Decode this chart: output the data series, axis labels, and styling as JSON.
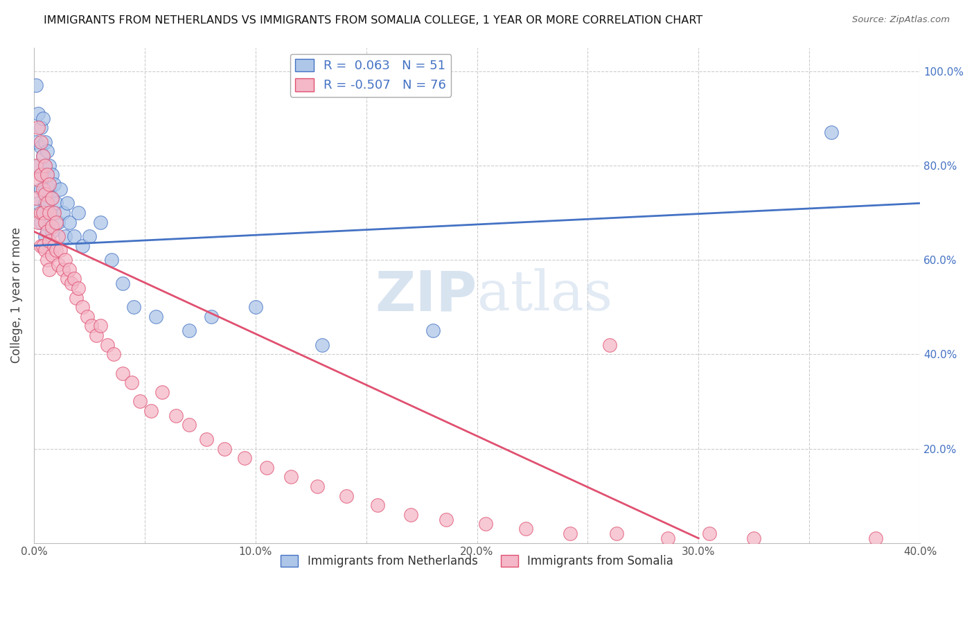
{
  "title": "IMMIGRANTS FROM NETHERLANDS VS IMMIGRANTS FROM SOMALIA COLLEGE, 1 YEAR OR MORE CORRELATION CHART",
  "source": "Source: ZipAtlas.com",
  "ylabel": "College, 1 year or more",
  "xlim": [
    0.0,
    0.4
  ],
  "ylim": [
    0.0,
    1.05
  ],
  "xticks": [
    0.0,
    0.05,
    0.1,
    0.15,
    0.2,
    0.25,
    0.3,
    0.35,
    0.4
  ],
  "xticklabels": [
    "0.0%",
    "",
    "10.0%",
    "",
    "20.0%",
    "",
    "30.0%",
    "",
    "40.0%"
  ],
  "yticks": [
    0.0,
    0.2,
    0.4,
    0.6,
    0.8,
    1.0
  ],
  "yticklabels": [
    "",
    "20.0%",
    "40.0%",
    "60.0%",
    "80.0%",
    "100.0%"
  ],
  "netherlands_color": "#aec6e8",
  "somalia_color": "#f4b8c8",
  "netherlands_line_color": "#4472c4",
  "somalia_line_color": "#e05070",
  "netherlands_R": 0.063,
  "netherlands_N": 51,
  "somalia_R": -0.507,
  "somalia_N": 76,
  "legend_label_netherlands": "Immigrants from Netherlands",
  "legend_label_somalia": "Immigrants from Somalia",
  "watermark_zip": "ZIP",
  "watermark_atlas": "atlas",
  "background_color": "#ffffff",
  "grid_color": "#cccccc",
  "nl_trend_x": [
    0.0,
    0.4
  ],
  "nl_trend_y": [
    0.63,
    0.72
  ],
  "som_trend_x": [
    0.0,
    0.3
  ],
  "som_trend_y": [
    0.66,
    0.01
  ],
  "netherlands_x": [
    0.001,
    0.001,
    0.002,
    0.002,
    0.002,
    0.003,
    0.003,
    0.003,
    0.003,
    0.004,
    0.004,
    0.004,
    0.004,
    0.005,
    0.005,
    0.005,
    0.005,
    0.005,
    0.006,
    0.006,
    0.006,
    0.007,
    0.007,
    0.007,
    0.008,
    0.008,
    0.008,
    0.009,
    0.009,
    0.01,
    0.011,
    0.012,
    0.013,
    0.014,
    0.015,
    0.016,
    0.018,
    0.02,
    0.022,
    0.025,
    0.03,
    0.035,
    0.04,
    0.045,
    0.055,
    0.07,
    0.08,
    0.1,
    0.13,
    0.18,
    0.36
  ],
  "netherlands_y": [
    0.97,
    0.85,
    0.91,
    0.8,
    0.72,
    0.88,
    0.84,
    0.75,
    0.68,
    0.9,
    0.82,
    0.78,
    0.7,
    0.85,
    0.8,
    0.75,
    0.72,
    0.65,
    0.83,
    0.78,
    0.7,
    0.8,
    0.75,
    0.68,
    0.78,
    0.73,
    0.66,
    0.76,
    0.7,
    0.72,
    0.68,
    0.75,
    0.7,
    0.65,
    0.72,
    0.68,
    0.65,
    0.7,
    0.63,
    0.65,
    0.68,
    0.6,
    0.55,
    0.5,
    0.48,
    0.45,
    0.48,
    0.5,
    0.42,
    0.45,
    0.87
  ],
  "somalia_x": [
    0.001,
    0.001,
    0.002,
    0.002,
    0.002,
    0.003,
    0.003,
    0.003,
    0.003,
    0.004,
    0.004,
    0.004,
    0.004,
    0.005,
    0.005,
    0.005,
    0.005,
    0.006,
    0.006,
    0.006,
    0.006,
    0.007,
    0.007,
    0.007,
    0.007,
    0.008,
    0.008,
    0.008,
    0.009,
    0.009,
    0.01,
    0.01,
    0.011,
    0.011,
    0.012,
    0.013,
    0.014,
    0.015,
    0.016,
    0.017,
    0.018,
    0.019,
    0.02,
    0.022,
    0.024,
    0.026,
    0.028,
    0.03,
    0.033,
    0.036,
    0.04,
    0.044,
    0.048,
    0.053,
    0.058,
    0.064,
    0.07,
    0.078,
    0.086,
    0.095,
    0.105,
    0.116,
    0.128,
    0.141,
    0.155,
    0.17,
    0.186,
    0.204,
    0.222,
    0.242,
    0.263,
    0.286,
    0.305,
    0.325,
    0.38,
    0.26
  ],
  "somalia_y": [
    0.8,
    0.73,
    0.88,
    0.77,
    0.68,
    0.85,
    0.78,
    0.7,
    0.63,
    0.82,
    0.75,
    0.7,
    0.63,
    0.8,
    0.74,
    0.68,
    0.62,
    0.78,
    0.72,
    0.66,
    0.6,
    0.76,
    0.7,
    0.64,
    0.58,
    0.73,
    0.67,
    0.61,
    0.7,
    0.63,
    0.68,
    0.62,
    0.65,
    0.59,
    0.62,
    0.58,
    0.6,
    0.56,
    0.58,
    0.55,
    0.56,
    0.52,
    0.54,
    0.5,
    0.48,
    0.46,
    0.44,
    0.46,
    0.42,
    0.4,
    0.36,
    0.34,
    0.3,
    0.28,
    0.32,
    0.27,
    0.25,
    0.22,
    0.2,
    0.18,
    0.16,
    0.14,
    0.12,
    0.1,
    0.08,
    0.06,
    0.05,
    0.04,
    0.03,
    0.02,
    0.02,
    0.01,
    0.02,
    0.01,
    0.01,
    0.42
  ]
}
